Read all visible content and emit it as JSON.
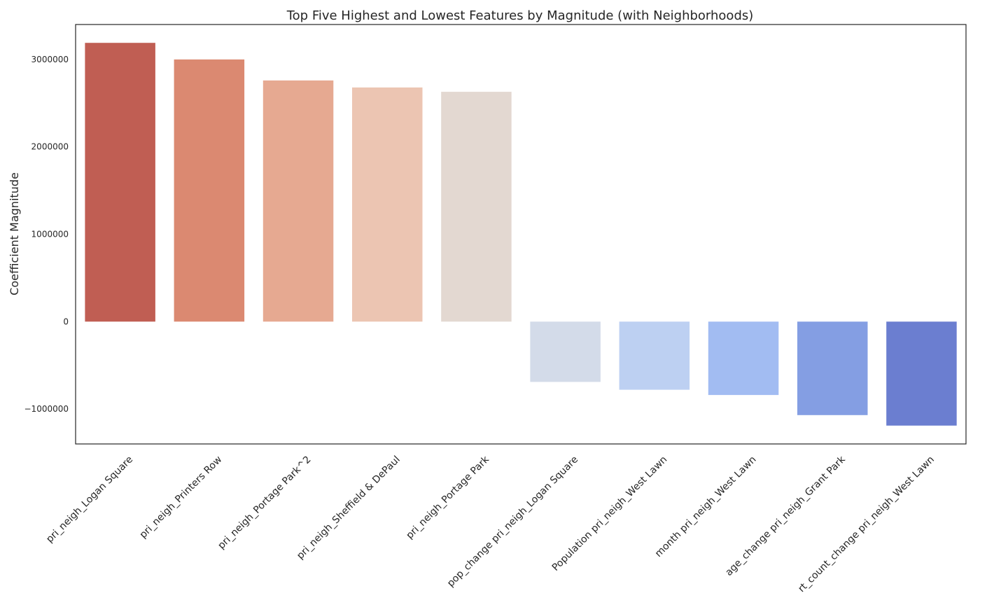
{
  "chart_data": {
    "type": "bar",
    "title": "Top Five Highest and Lowest Features by Magnitude (with Neighborhoods)",
    "xlabel": "",
    "ylabel": "Coefficient Magnitude",
    "ylim": [
      -1400000,
      3400000
    ],
    "yticks": [
      -1000000,
      0,
      1000000,
      2000000,
      3000000
    ],
    "ytick_labels": [
      "−1000000",
      "0",
      "1000000",
      "2000000",
      "3000000"
    ],
    "grid": false,
    "categories": [
      "pri_neigh_Logan Square",
      "pri_neigh_Printers Row",
      "pri_neigh_Portage Park^2",
      "pri_neigh_Sheffield & DePaul",
      "pri_neigh_Portage Park",
      "pop_change pri_neigh_Logan Square",
      "Population pri_neigh_West Lawn",
      "month pri_neigh_West Lawn",
      "age_change pri_neigh_Grant Park",
      "rt_count_change pri_neigh_West Lawn"
    ],
    "values": [
      3190000,
      3000000,
      2760000,
      2680000,
      2630000,
      -690000,
      -780000,
      -840000,
      -1070000,
      -1190000
    ],
    "colors": [
      "#c05e53",
      "#db8971",
      "#e6a991",
      "#ecc5b2",
      "#e3d8d1",
      "#d3dbe9",
      "#bdd0f2",
      "#a2bcf2",
      "#849ee3",
      "#6b7ed0"
    ]
  }
}
